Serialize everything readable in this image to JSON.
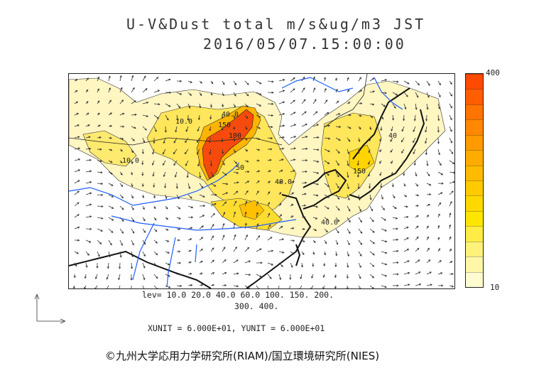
{
  "title": {
    "line1": "U-V&Dust total m/s&ug/m3 JST",
    "line2": "2016/05/07.15:00:00"
  },
  "colorbar": {
    "max_label": "400",
    "min_label": "10",
    "colors": [
      "#fffbd0",
      "#fff7a8",
      "#fff27a",
      "#ffed45",
      "#ffe600",
      "#ffd800",
      "#ffca00",
      "#ffbb00",
      "#ffab00",
      "#ff9a00",
      "#ff8800",
      "#ff7300",
      "#ff5e00",
      "#ff4a00"
    ]
  },
  "contour_labels": [
    "10.0",
    "40.0",
    "150",
    "100",
    "50",
    "40.0",
    "10.0",
    "150",
    "40",
    "40.0"
  ],
  "levels": {
    "line1": "lev= 10.0 20.0 40.0 60.0 100. 150. 200.",
    "line2": "300. 400."
  },
  "units_text": "XUNIT = 6.000E+01, YUNIT = 6.000E+01",
  "copyright": "©九州大学応用力学研究所(RIAM)/国立環境研究所(NIES)",
  "palette": {
    "coast": "#111111",
    "river": "#1e5fff",
    "dust_low": "#fff4b0",
    "dust_mid": "#ffd21a",
    "dust_high": "#ff5a10",
    "dust_peak": "#ff4000"
  }
}
